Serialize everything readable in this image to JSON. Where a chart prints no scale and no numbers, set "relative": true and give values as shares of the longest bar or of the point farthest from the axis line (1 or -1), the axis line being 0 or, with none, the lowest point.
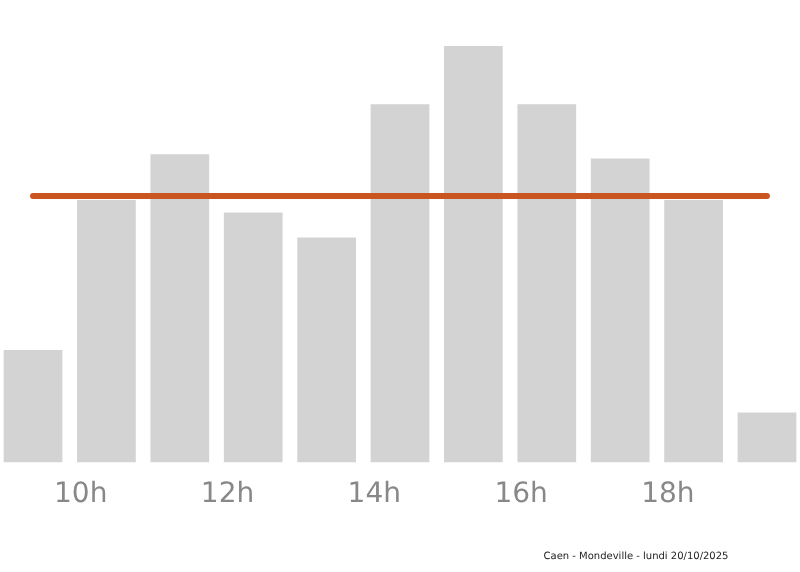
{
  "chart_data": {
    "type": "bar",
    "relative": true,
    "x": [
      9.35,
      10.35,
      11.35,
      12.35,
      13.35,
      14.35,
      15.35,
      16.35,
      17.35,
      18.35,
      19.35
    ],
    "values": [
      0.27,
      0.63,
      0.74,
      0.6,
      0.54,
      0.86,
      1,
      0.86,
      0.73,
      0.63,
      0.12
    ],
    "color": "#d3d3d3",
    "xlim": [
      8.9,
      19.8
    ],
    "xticks": [
      {
        "value": 10,
        "label": "10h"
      },
      {
        "value": 12,
        "label": "12h"
      },
      {
        "value": 14,
        "label": "14h"
      },
      {
        "value": 16,
        "label": "16h"
      },
      {
        "value": 18,
        "label": "18h"
      }
    ],
    "ref_lines": [
      {
        "axis": "y",
        "value": 0.64,
        "color": "#c8561e"
      }
    ],
    "annotations": [
      "Caen - Mondeville - lundi 20/10/2025"
    ],
    "grid": false,
    "legend": false
  }
}
